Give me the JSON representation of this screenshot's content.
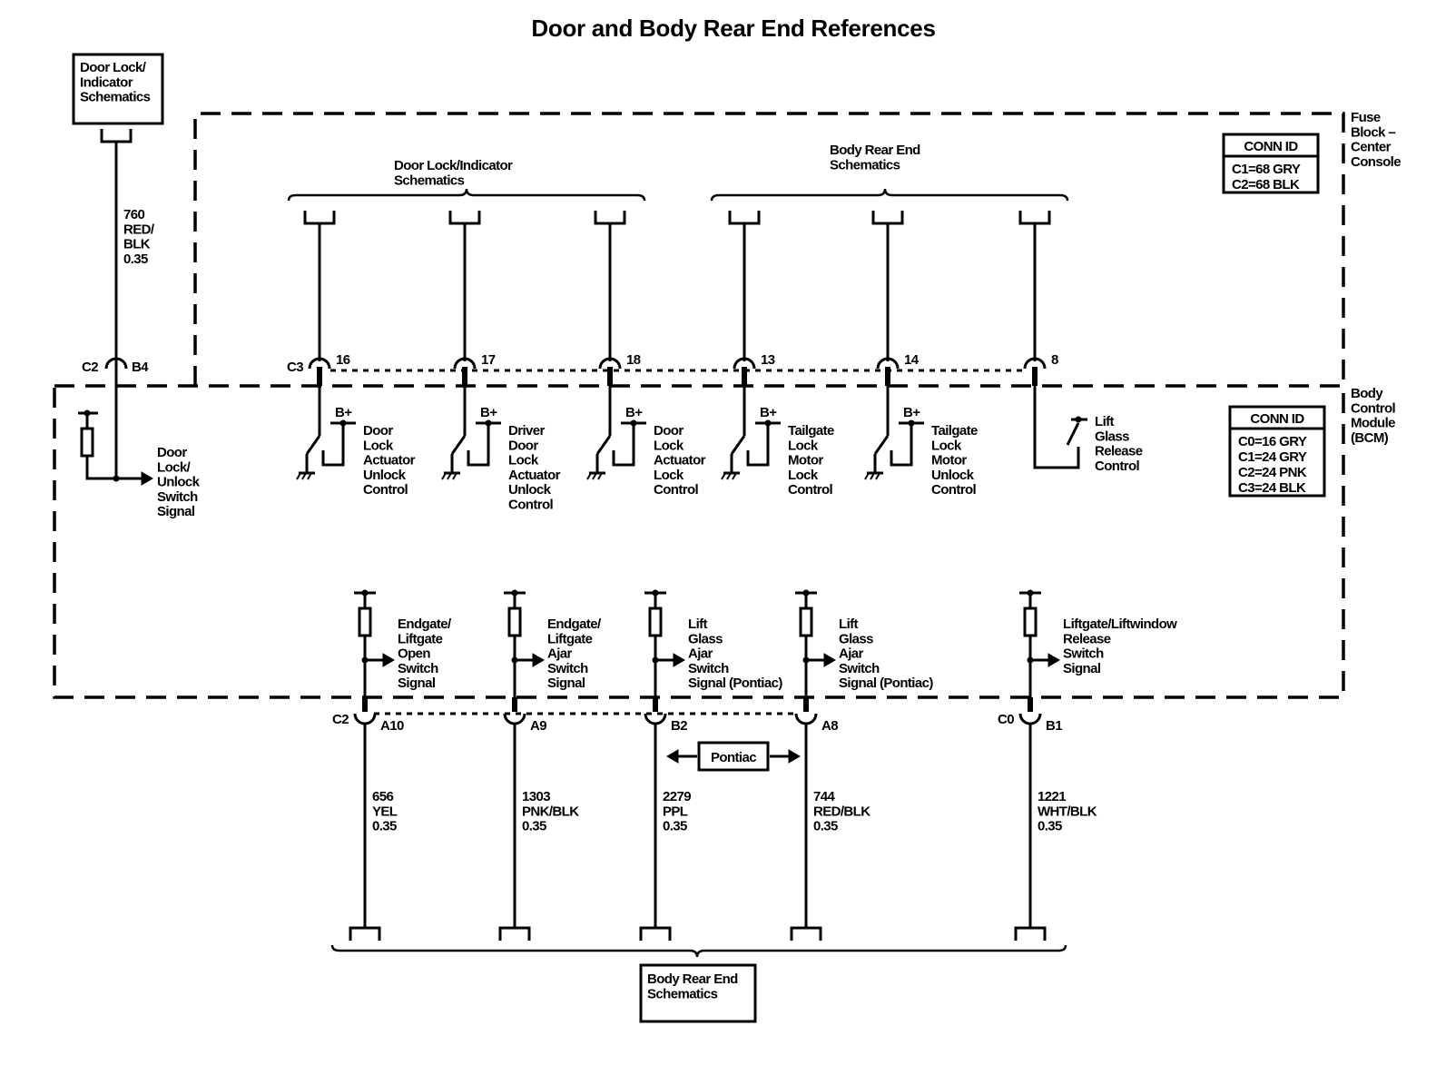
{
  "title": "Door and Body Rear End References",
  "top_ref_box": [
    "Door Lock/",
    "Indicator",
    "Schematics"
  ],
  "top_left_wire": {
    "label": [
      "760",
      "RED/",
      "BLK",
      "0.35"
    ],
    "connector": "C2",
    "pin": "B4"
  },
  "fuse_block_label": [
    "Fuse",
    "Block –",
    "Center",
    "Console"
  ],
  "bcm_label": [
    "Body",
    "Control",
    "Module",
    "(BCM)"
  ],
  "fuse_conn_id": {
    "header": "CONN ID",
    "rows": [
      "C1=68 GRY",
      "C2=68 BLK"
    ]
  },
  "bcm_conn_id": {
    "header": "CONN ID",
    "rows": [
      "C0=16 GRY",
      "C1=24 GRY",
      "C2=24 PNK",
      "C3=24 BLK"
    ]
  },
  "top_groups": [
    {
      "label": [
        "Door Lock/Indicator",
        "Schematics"
      ]
    },
    {
      "label": [
        "Body Rear End",
        "Schematics"
      ]
    }
  ],
  "top_connector": "C3",
  "bplus": "B+",
  "top_circuits": [
    {
      "pin": "16",
      "type": "switch",
      "label": [
        "Door",
        "Lock",
        "Actuator",
        "Unlock",
        "Control"
      ]
    },
    {
      "pin": "17",
      "type": "switch",
      "label": [
        "Driver",
        "Door",
        "Lock",
        "Actuator",
        "Unlock",
        "Control"
      ]
    },
    {
      "pin": "18",
      "type": "switch",
      "label": [
        "Door",
        "Lock",
        "Actuator",
        "Lock",
        "Control"
      ]
    },
    {
      "pin": "13",
      "type": "switch",
      "label": [
        "Tailgate",
        "Lock",
        "Motor",
        "Lock",
        "Control"
      ]
    },
    {
      "pin": "14",
      "type": "switch",
      "label": [
        "Tailgate",
        "Lock",
        "Motor",
        "Unlock",
        "Control"
      ]
    },
    {
      "pin": "8",
      "type": "release",
      "label": [
        "Lift",
        "Glass",
        "Release",
        "Control"
      ]
    }
  ],
  "left_input_label": [
    "Door",
    "Lock/",
    "Unlock",
    "Switch",
    "Signal"
  ],
  "bottom_circuits": [
    {
      "connector": "C2",
      "pin": "A10",
      "signal": [
        "Endgate/",
        "Liftgate",
        "Open",
        "Switch",
        "Signal"
      ],
      "wire": [
        "656",
        "YEL",
        "0.35"
      ]
    },
    {
      "connector": "",
      "pin": "A9",
      "signal": [
        "Endgate/",
        "Liftgate",
        "Ajar",
        "Switch",
        "Signal"
      ],
      "wire": [
        "1303",
        "PNK/BLK",
        "0.35"
      ]
    },
    {
      "connector": "",
      "pin": "B2",
      "signal": [
        "Lift",
        "Glass",
        "Ajar",
        "Switch",
        "Signal (Pontiac)"
      ],
      "wire": [
        "2279",
        "PPL",
        "0.35"
      ]
    },
    {
      "connector": "",
      "pin": "A8",
      "signal": [
        "Lift",
        "Glass",
        "Ajar",
        "Switch",
        "Signal (Pontiac)"
      ],
      "wire": [
        "744",
        "RED/BLK",
        "0.35"
      ]
    },
    {
      "connector": "C0",
      "pin": "B1",
      "signal": [
        "Liftgate/Liftwindow",
        "Release",
        "Switch",
        "Signal"
      ],
      "wire": [
        "1221",
        "WHT/BLK",
        "0.35"
      ]
    }
  ],
  "pontiac_label": "Pontiac",
  "bottom_ref_box": [
    "Body Rear End",
    "Schematics"
  ]
}
